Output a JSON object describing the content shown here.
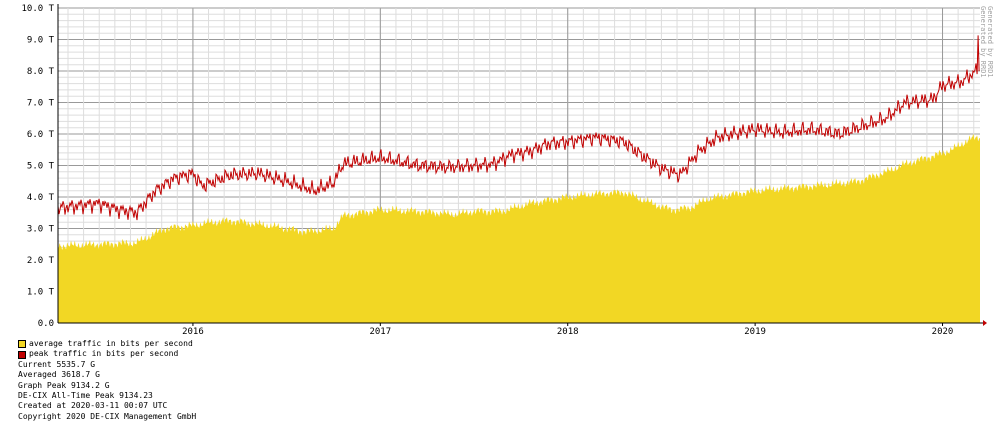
{
  "chart_data": {
    "type": "area",
    "title": "",
    "xlabel": "",
    "ylabel": "",
    "unit": "bits per second",
    "x_range": [
      2015.28,
      2020.2
    ],
    "ylim": [
      0,
      10
    ],
    "y_ticks": [
      0,
      1,
      2,
      3,
      4,
      5,
      6,
      7,
      8,
      9,
      10
    ],
    "y_tick_labels": [
      "0.0",
      "1.0 T",
      "2.0 T",
      "3.0 T",
      "4.0 T",
      "5.0 T",
      "6.0 T",
      "7.0 T",
      "8.0 T",
      "9.0 T",
      "10.0 T"
    ],
    "x_ticks": [
      2016,
      2017,
      2018,
      2019,
      2020
    ],
    "x_tick_labels": [
      "2016",
      "2017",
      "2018",
      "2019",
      "2020"
    ],
    "grid": true,
    "legend_position": "bottom-left",
    "series": [
      {
        "name": "average traffic in bits per second",
        "style": "area",
        "color": "#f2d724",
        "points": [
          [
            2015.28,
            2.45
          ],
          [
            2015.5,
            2.5
          ],
          [
            2015.7,
            2.55
          ],
          [
            2015.85,
            3.0
          ],
          [
            2016.0,
            3.1
          ],
          [
            2016.1,
            3.2
          ],
          [
            2016.2,
            3.25
          ],
          [
            2016.4,
            3.1
          ],
          [
            2016.6,
            2.9
          ],
          [
            2016.75,
            3.0
          ],
          [
            2016.8,
            3.4
          ],
          [
            2016.95,
            3.55
          ],
          [
            2017.0,
            3.6
          ],
          [
            2017.2,
            3.55
          ],
          [
            2017.4,
            3.45
          ],
          [
            2017.5,
            3.55
          ],
          [
            2017.65,
            3.55
          ],
          [
            2017.8,
            3.8
          ],
          [
            2018.0,
            4.0
          ],
          [
            2018.15,
            4.1
          ],
          [
            2018.3,
            4.15
          ],
          [
            2018.45,
            3.8
          ],
          [
            2018.55,
            3.6
          ],
          [
            2018.65,
            3.65
          ],
          [
            2018.75,
            3.95
          ],
          [
            2018.9,
            4.1
          ],
          [
            2019.0,
            4.2
          ],
          [
            2019.2,
            4.3
          ],
          [
            2019.4,
            4.4
          ],
          [
            2019.55,
            4.5
          ],
          [
            2019.7,
            4.8
          ],
          [
            2019.8,
            5.05
          ],
          [
            2019.95,
            5.3
          ],
          [
            2020.05,
            5.5
          ],
          [
            2020.15,
            5.85
          ],
          [
            2020.2,
            5.9
          ]
        ]
      },
      {
        "name": "peak traffic in bits per second",
        "style": "line",
        "color": "#c00000",
        "points": [
          [
            2015.28,
            3.65
          ],
          [
            2015.5,
            3.8
          ],
          [
            2015.6,
            3.6
          ],
          [
            2015.7,
            3.5
          ],
          [
            2015.8,
            4.2
          ],
          [
            2015.9,
            4.6
          ],
          [
            2016.0,
            4.75
          ],
          [
            2016.05,
            4.35
          ],
          [
            2016.2,
            4.7
          ],
          [
            2016.35,
            4.75
          ],
          [
            2016.5,
            4.5
          ],
          [
            2016.65,
            4.2
          ],
          [
            2016.75,
            4.45
          ],
          [
            2016.8,
            5.05
          ],
          [
            2016.95,
            5.2
          ],
          [
            2017.0,
            5.25
          ],
          [
            2017.2,
            5.0
          ],
          [
            2017.35,
            4.95
          ],
          [
            2017.5,
            5.0
          ],
          [
            2017.6,
            5.05
          ],
          [
            2017.7,
            5.35
          ],
          [
            2017.8,
            5.45
          ],
          [
            2017.9,
            5.7
          ],
          [
            2018.0,
            5.75
          ],
          [
            2018.15,
            5.9
          ],
          [
            2018.3,
            5.75
          ],
          [
            2018.4,
            5.3
          ],
          [
            2018.5,
            4.9
          ],
          [
            2018.6,
            4.7
          ],
          [
            2018.7,
            5.45
          ],
          [
            2018.8,
            5.9
          ],
          [
            2019.0,
            6.15
          ],
          [
            2019.15,
            6.05
          ],
          [
            2019.3,
            6.15
          ],
          [
            2019.45,
            6.0
          ],
          [
            2019.6,
            6.3
          ],
          [
            2019.7,
            6.5
          ],
          [
            2019.8,
            7.0
          ],
          [
            2019.95,
            7.1
          ],
          [
            2020.0,
            7.55
          ],
          [
            2020.1,
            7.65
          ],
          [
            2020.18,
            8.0
          ],
          [
            2020.2,
            8.0
          ]
        ],
        "peak_spike": [
          2020.19,
          9.13
        ]
      }
    ]
  },
  "legend": [
    {
      "label": "average traffic in bits per second",
      "color": "#f2d724"
    },
    {
      "label": "peak traffic in bits per second",
      "color": "#c00000"
    }
  ],
  "info": {
    "current": "Current 5535.7 G",
    "averaged": "Averaged 3618.7 G",
    "graph_peak": "Graph Peak 9134.2 G",
    "all_time_peak": "DE-CIX All-Time Peak 9134.23",
    "created": "Created at 2020-03-11 00:07 UTC",
    "copyright": "Copyright 2020 DE-CIX Management GmbH"
  },
  "watermark": {
    "line1": "Generated by RRD1",
    "line2": "Generated by RRD1"
  }
}
